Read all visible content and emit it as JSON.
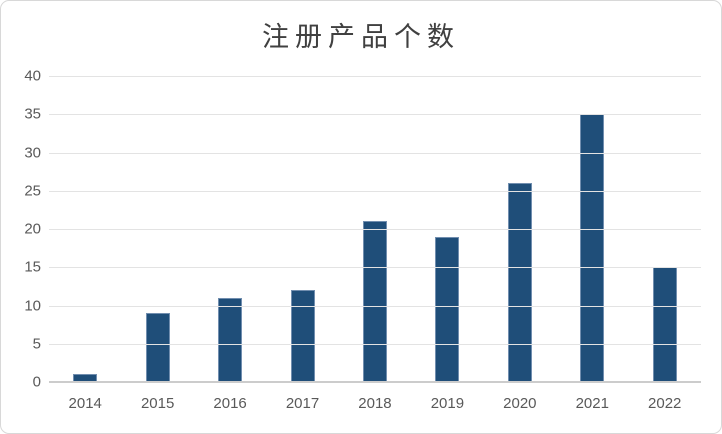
{
  "chart_data": {
    "type": "bar",
    "title": "注册产品个数",
    "categories": [
      "2014",
      "2015",
      "2016",
      "2017",
      "2018",
      "2019",
      "2020",
      "2021",
      "2022"
    ],
    "values": [
      1,
      9,
      11,
      12,
      21,
      19,
      26,
      35,
      15
    ],
    "xlabel": "",
    "ylabel": "",
    "ylim": [
      0,
      40
    ],
    "yticks": [
      0,
      5,
      10,
      15,
      20,
      25,
      30,
      35,
      40
    ],
    "grid": true,
    "legend": false,
    "colors": {
      "bar_fill": "#1F4E79",
      "gridline": "#E3E3E3",
      "axis_baseline": "#CCCCCC",
      "tick_label": "#595959",
      "title_text": "#404040",
      "frame_border": "#D8D8D8",
      "background": "#FFFFFF"
    }
  }
}
